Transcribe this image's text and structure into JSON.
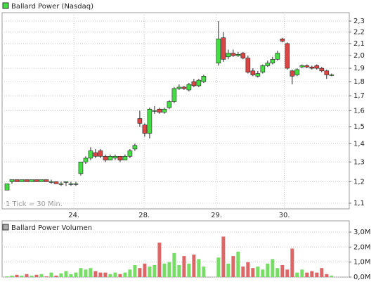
{
  "chart_data": [
    {
      "type": "candlestick",
      "legend": "Ballard Power (Nasdaq)",
      "annotation": "1 Tick = 30 Min.",
      "up_color": "#44dd44",
      "down_color": "#dd4444",
      "log_scale": true,
      "grid": true,
      "x": [
        0,
        1,
        2,
        3,
        4,
        5,
        6,
        7,
        8,
        9,
        10,
        11,
        12,
        13,
        14,
        15,
        16,
        17,
        18,
        19,
        20,
        21,
        22,
        23,
        24,
        25,
        26,
        27,
        28,
        29,
        30,
        31,
        32,
        33,
        34,
        35,
        36,
        37,
        38,
        39,
        40,
        43,
        44,
        45,
        46,
        47,
        48,
        49,
        50,
        51,
        52,
        53,
        54,
        55,
        56,
        57,
        58,
        59,
        60,
        61,
        62,
        63,
        64,
        65,
        66
      ],
      "open": [
        1.16,
        1.2,
        1.21,
        1.2,
        1.21,
        1.2,
        1.21,
        1.2,
        1.21,
        1.2,
        1.2,
        1.19,
        1.2,
        1.19,
        1.19,
        1.24,
        1.3,
        1.32,
        1.35,
        1.36,
        1.33,
        1.31,
        1.32,
        1.33,
        1.31,
        1.33,
        1.37,
        1.55,
        1.51,
        1.46,
        1.6,
        1.61,
        1.59,
        1.62,
        1.66,
        1.75,
        1.76,
        1.74,
        1.8,
        1.77,
        1.8,
        1.94,
        2.15,
        1.99,
        2.02,
        2.0,
        2.02,
        1.98,
        1.88,
        1.84,
        1.87,
        1.92,
        1.94,
        1.97,
        2.14,
        2.1,
        1.88,
        1.85,
        1.91,
        1.92,
        1.91,
        1.92,
        1.9,
        1.88,
        1.85
      ],
      "high": [
        1.19,
        1.21,
        1.21,
        1.21,
        1.21,
        1.21,
        1.21,
        1.21,
        1.21,
        1.21,
        1.2,
        1.2,
        1.2,
        1.2,
        1.2,
        1.3,
        1.33,
        1.38,
        1.37,
        1.37,
        1.34,
        1.34,
        1.34,
        1.33,
        1.34,
        1.37,
        1.4,
        1.6,
        1.52,
        1.62,
        1.63,
        1.62,
        1.62,
        1.67,
        1.76,
        1.78,
        1.77,
        1.79,
        1.82,
        1.82,
        1.85,
        2.3,
        2.2,
        2.05,
        2.05,
        2.03,
        2.03,
        2.0,
        1.9,
        1.88,
        1.93,
        1.96,
        1.99,
        2.04,
        2.15,
        2.11,
        1.89,
        1.9,
        1.93,
        1.93,
        1.92,
        1.93,
        1.91,
        1.89,
        1.86
      ],
      "low": [
        1.16,
        1.19,
        1.2,
        1.2,
        1.2,
        1.2,
        1.2,
        1.2,
        1.2,
        1.19,
        1.19,
        1.18,
        1.18,
        1.18,
        1.18,
        1.23,
        1.29,
        1.31,
        1.32,
        1.32,
        1.3,
        1.31,
        1.31,
        1.3,
        1.31,
        1.32,
        1.36,
        1.5,
        1.44,
        1.43,
        1.58,
        1.58,
        1.58,
        1.61,
        1.65,
        1.74,
        1.74,
        1.73,
        1.76,
        1.76,
        1.79,
        1.92,
        1.95,
        1.97,
        1.99,
        1.99,
        1.97,
        1.86,
        1.84,
        1.83,
        1.86,
        1.91,
        1.93,
        1.96,
        2.11,
        1.89,
        1.78,
        1.84,
        1.9,
        1.9,
        1.89,
        1.89,
        1.87,
        1.82,
        1.84
      ],
      "close": [
        1.19,
        1.21,
        1.2,
        1.21,
        1.2,
        1.21,
        1.2,
        1.21,
        1.2,
        1.2,
        1.19,
        1.19,
        1.2,
        1.19,
        1.19,
        1.3,
        1.32,
        1.36,
        1.33,
        1.33,
        1.31,
        1.33,
        1.33,
        1.31,
        1.33,
        1.36,
        1.39,
        1.52,
        1.46,
        1.61,
        1.6,
        1.59,
        1.61,
        1.66,
        1.75,
        1.76,
        1.75,
        1.78,
        1.77,
        1.81,
        1.84,
        2.14,
        1.97,
        2.02,
        2.0,
        2.01,
        1.98,
        1.87,
        1.85,
        1.86,
        1.92,
        1.94,
        1.97,
        2.02,
        2.12,
        1.9,
        1.84,
        1.89,
        1.92,
        1.91,
        1.9,
        1.9,
        1.88,
        1.85,
        1.85
      ],
      "xlim": [
        -1,
        69.6
      ],
      "xticks": [
        {
          "value": 13.6,
          "label": "24."
        },
        {
          "value": 27.9,
          "label": "28."
        },
        {
          "value": 42.6,
          "label": "29."
        },
        {
          "value": 56.4,
          "label": "30."
        }
      ],
      "ylim": [
        1.075,
        2.38
      ],
      "yticks": [
        {
          "value": 1.1,
          "label": "1,1"
        },
        {
          "value": 1.2,
          "label": "1,2"
        },
        {
          "value": 1.3,
          "label": "1,3"
        },
        {
          "value": 1.4,
          "label": "1,4"
        },
        {
          "value": 1.5,
          "label": "1,5"
        },
        {
          "value": 1.6,
          "label": "1,6"
        },
        {
          "value": 1.7,
          "label": "1,7"
        },
        {
          "value": 1.8,
          "label": "1,8"
        },
        {
          "value": 1.9,
          "label": "1,9"
        },
        {
          "value": 2.0,
          "label": "2,0"
        },
        {
          "value": 2.1,
          "label": "2,1"
        },
        {
          "value": 2.2,
          "label": "2,2"
        },
        {
          "value": 2.3,
          "label": "2,3"
        }
      ]
    },
    {
      "type": "bar",
      "legend": "Ballard Power Volumen",
      "legend_color": "#aaaaaa",
      "up_color": "#77dd66",
      "down_color": "#dd6666",
      "grid": true,
      "x": [
        0,
        1,
        2,
        3,
        4,
        5,
        6,
        7,
        8,
        9,
        10,
        11,
        12,
        13,
        14,
        15,
        16,
        17,
        18,
        19,
        20,
        21,
        22,
        23,
        24,
        25,
        26,
        27,
        28,
        29,
        30,
        31,
        32,
        33,
        34,
        35,
        36,
        37,
        38,
        39,
        40,
        43,
        44,
        45,
        46,
        47,
        48,
        49,
        50,
        51,
        52,
        53,
        54,
        55,
        56,
        57,
        58,
        59,
        60,
        61,
        62,
        63,
        64,
        65,
        66
      ],
      "values": [
        0.05,
        0.1,
        0.15,
        0.1,
        0.2,
        0.1,
        0.15,
        0.2,
        0.05,
        0.3,
        0.1,
        0.25,
        0.4,
        0.2,
        0.3,
        0.6,
        0.5,
        0.6,
        0.4,
        0.3,
        0.3,
        0.2,
        0.3,
        0.2,
        0.3,
        0.5,
        0.8,
        0.6,
        0.9,
        0.7,
        0.8,
        2.3,
        0.9,
        1.0,
        1.6,
        0.8,
        1.4,
        0.9,
        1.5,
        1.2,
        0.7,
        1.3,
        2.7,
        0.9,
        1.4,
        1.7,
        0.7,
        1.0,
        0.6,
        0.7,
        0.5,
        0.9,
        1.2,
        0.6,
        0.8,
        0.5,
        1.9,
        0.3,
        0.5,
        0.3,
        0.4,
        0.3,
        0.6,
        0.2,
        0.1
      ],
      "xlim": [
        -1,
        69.6
      ],
      "ylim": [
        0,
        3.75
      ],
      "yticks": [
        {
          "value": 0,
          "label": "0,0M"
        },
        {
          "value": 1,
          "label": "1,0M"
        },
        {
          "value": 2,
          "label": "2,0M"
        },
        {
          "value": 3,
          "label": "3,0M"
        }
      ]
    }
  ]
}
